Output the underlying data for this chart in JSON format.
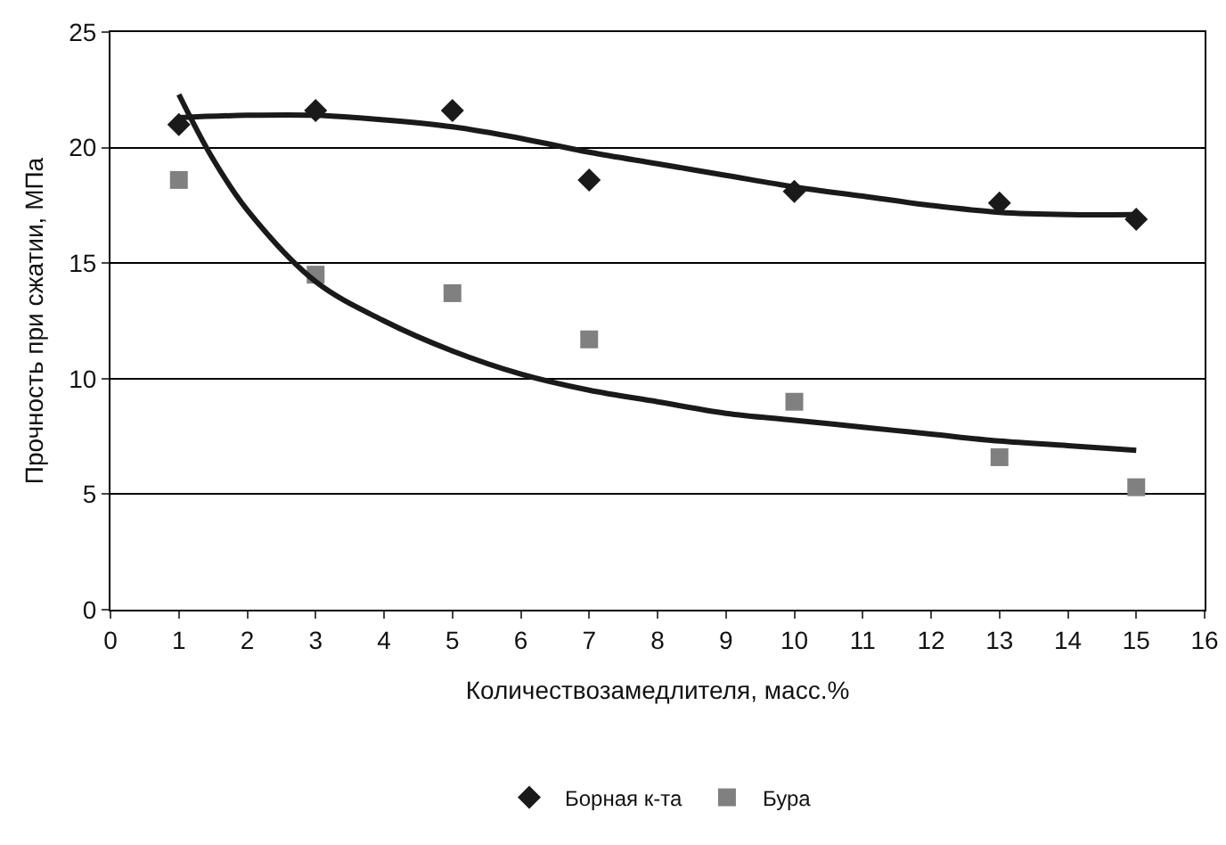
{
  "chart_data": {
    "type": "scatter",
    "xlabel": "Количествозамедлителя, масс.%",
    "ylabel": "Прочность при сжатии, МПа",
    "xlim": [
      0,
      16
    ],
    "xticks": [
      0,
      1,
      2,
      3,
      4,
      5,
      6,
      7,
      8,
      9,
      10,
      11,
      12,
      13,
      14,
      15,
      16
    ],
    "ylim": [
      0,
      25
    ],
    "yticks": [
      0,
      5,
      10,
      15,
      20,
      25
    ],
    "grid": "y",
    "legend": "bottom",
    "series": [
      {
        "name": "Борная к-та",
        "marker": "diamond",
        "color": "#1a1a1a",
        "x": [
          1,
          3,
          5,
          7,
          10,
          13,
          15
        ],
        "values": [
          21.0,
          21.6,
          21.6,
          18.6,
          18.1,
          17.6,
          16.9
        ]
      },
      {
        "name": "Бура",
        "marker": "square",
        "color": "#808080",
        "x": [
          1,
          3,
          5,
          7,
          10,
          13,
          15
        ],
        "values": [
          18.6,
          14.5,
          13.7,
          11.7,
          9.0,
          6.6,
          5.3
        ]
      },
      {
        "type": "line",
        "marker": "none",
        "color": "#1a1a1a",
        "x": [
          1,
          2,
          3,
          4,
          5,
          6,
          7,
          8,
          9,
          10,
          11,
          12,
          13,
          14,
          15
        ],
        "values": [
          21.3,
          21.4,
          21.4,
          21.2,
          20.9,
          20.4,
          19.8,
          19.3,
          18.8,
          18.3,
          17.9,
          17.5,
          17.2,
          17.1,
          17.1
        ]
      },
      {
        "type": "line",
        "marker": "none",
        "color": "#1a1a1a",
        "x": [
          1,
          1.5,
          2,
          3,
          4,
          5,
          6,
          7,
          8,
          9,
          10,
          11,
          12,
          13,
          14,
          15
        ],
        "values": [
          22.3,
          19.5,
          17.3,
          14.2,
          12.5,
          11.2,
          10.2,
          9.5,
          9.0,
          8.5,
          8.2,
          7.9,
          7.6,
          7.3,
          7.1,
          6.9
        ]
      }
    ]
  }
}
